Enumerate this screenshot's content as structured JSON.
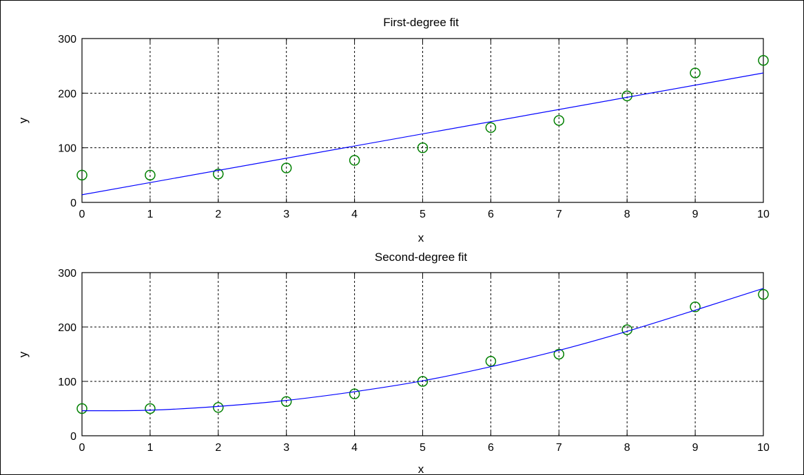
{
  "colors": {
    "fit_line": "#0000ff",
    "markers": "#008000",
    "grid": "#000000"
  },
  "chart_data": [
    {
      "type": "scatter",
      "title": "First-degree fit",
      "xlabel": "x",
      "ylabel": "y",
      "xlim": [
        0,
        10
      ],
      "ylim": [
        0,
        300
      ],
      "xticks": [
        "0",
        "1",
        "2",
        "3",
        "4",
        "5",
        "6",
        "7",
        "8",
        "9",
        "10"
      ],
      "yticks": [
        "0",
        "100",
        "200",
        "300"
      ],
      "grid": true,
      "series": [
        {
          "kind": "markers",
          "marker": "circle",
          "color": "#008000",
          "x": [
            0,
            1,
            2,
            3,
            4,
            5,
            6,
            7,
            8,
            9,
            10
          ],
          "y": [
            50,
            50,
            52,
            63,
            77,
            100,
            137,
            150,
            195,
            237,
            260
          ]
        },
        {
          "kind": "line",
          "color": "#0000ff",
          "x": [
            0,
            10
          ],
          "y": [
            14,
            237
          ]
        }
      ]
    },
    {
      "type": "scatter",
      "title": "Second-degree fit",
      "xlabel": "x",
      "ylabel": "y",
      "xlim": [
        0,
        10
      ],
      "ylim": [
        0,
        300
      ],
      "xticks": [
        "0",
        "1",
        "2",
        "3",
        "4",
        "5",
        "6",
        "7",
        "8",
        "9",
        "10"
      ],
      "yticks": [
        "0",
        "100",
        "200",
        "300"
      ],
      "grid": true,
      "series": [
        {
          "kind": "markers",
          "marker": "circle",
          "color": "#008000",
          "x": [
            0,
            1,
            2,
            3,
            4,
            5,
            6,
            7,
            8,
            9,
            10
          ],
          "y": [
            50,
            50,
            52,
            63,
            77,
            100,
            137,
            150,
            195,
            237,
            260
          ]
        },
        {
          "kind": "line",
          "color": "#0000ff",
          "x": [
            0,
            1,
            2,
            3,
            4,
            5,
            6,
            7,
            8,
            9,
            10
          ],
          "y": [
            46,
            47,
            54,
            65,
            81,
            101,
            127,
            157,
            192,
            231,
            271
          ]
        }
      ]
    }
  ]
}
